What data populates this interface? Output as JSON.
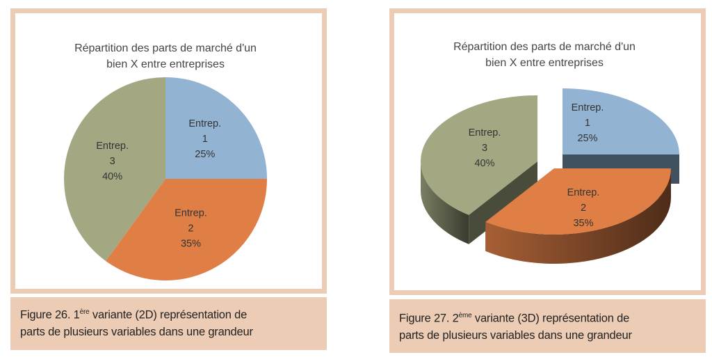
{
  "chart_data": [
    {
      "type": "pie",
      "variant": "2D",
      "title": [
        "Répartition des parts de marché d'un",
        "bien X entre entreprises"
      ],
      "categories": [
        "Entrep. 1",
        "Entrep. 2",
        "Entrep. 3"
      ],
      "values": [
        25,
        35,
        40
      ],
      "labels": [
        [
          "Entrep.",
          "1",
          "25%"
        ],
        [
          "Entrep.",
          "2",
          "35%"
        ],
        [
          "Entrep.",
          "3",
          "40%"
        ]
      ],
      "colors": [
        "#93b3d3",
        "#df7f46",
        "#a3a883"
      ]
    },
    {
      "type": "pie",
      "variant": "3D exploded",
      "title": [
        "Répartition des parts de marché d'un",
        "bien X entre entreprises"
      ],
      "categories": [
        "Entrep. 1",
        "Entrep. 2",
        "Entrep. 3"
      ],
      "values": [
        25,
        35,
        40
      ],
      "labels": [
        [
          "Entrep.",
          "1",
          "25%"
        ],
        [
          "Entrep.",
          "2",
          "35%"
        ],
        [
          "Entrep.",
          "3",
          "40%"
        ]
      ],
      "colors": [
        "#93b3d3",
        "#df7f46",
        "#a3a883"
      ]
    }
  ],
  "captions": [
    {
      "prefix": "Figure 26. 1",
      "sup": "ère",
      "rest": " variante (2D) représentation de",
      "line2": "parts de plusieurs variables dans une grandeur"
    },
    {
      "prefix": "Figure 27. 2",
      "sup": "ème",
      "rest": " variante (3D) représentation de",
      "line2": "parts de plusieurs variables dans une grandeur"
    }
  ]
}
